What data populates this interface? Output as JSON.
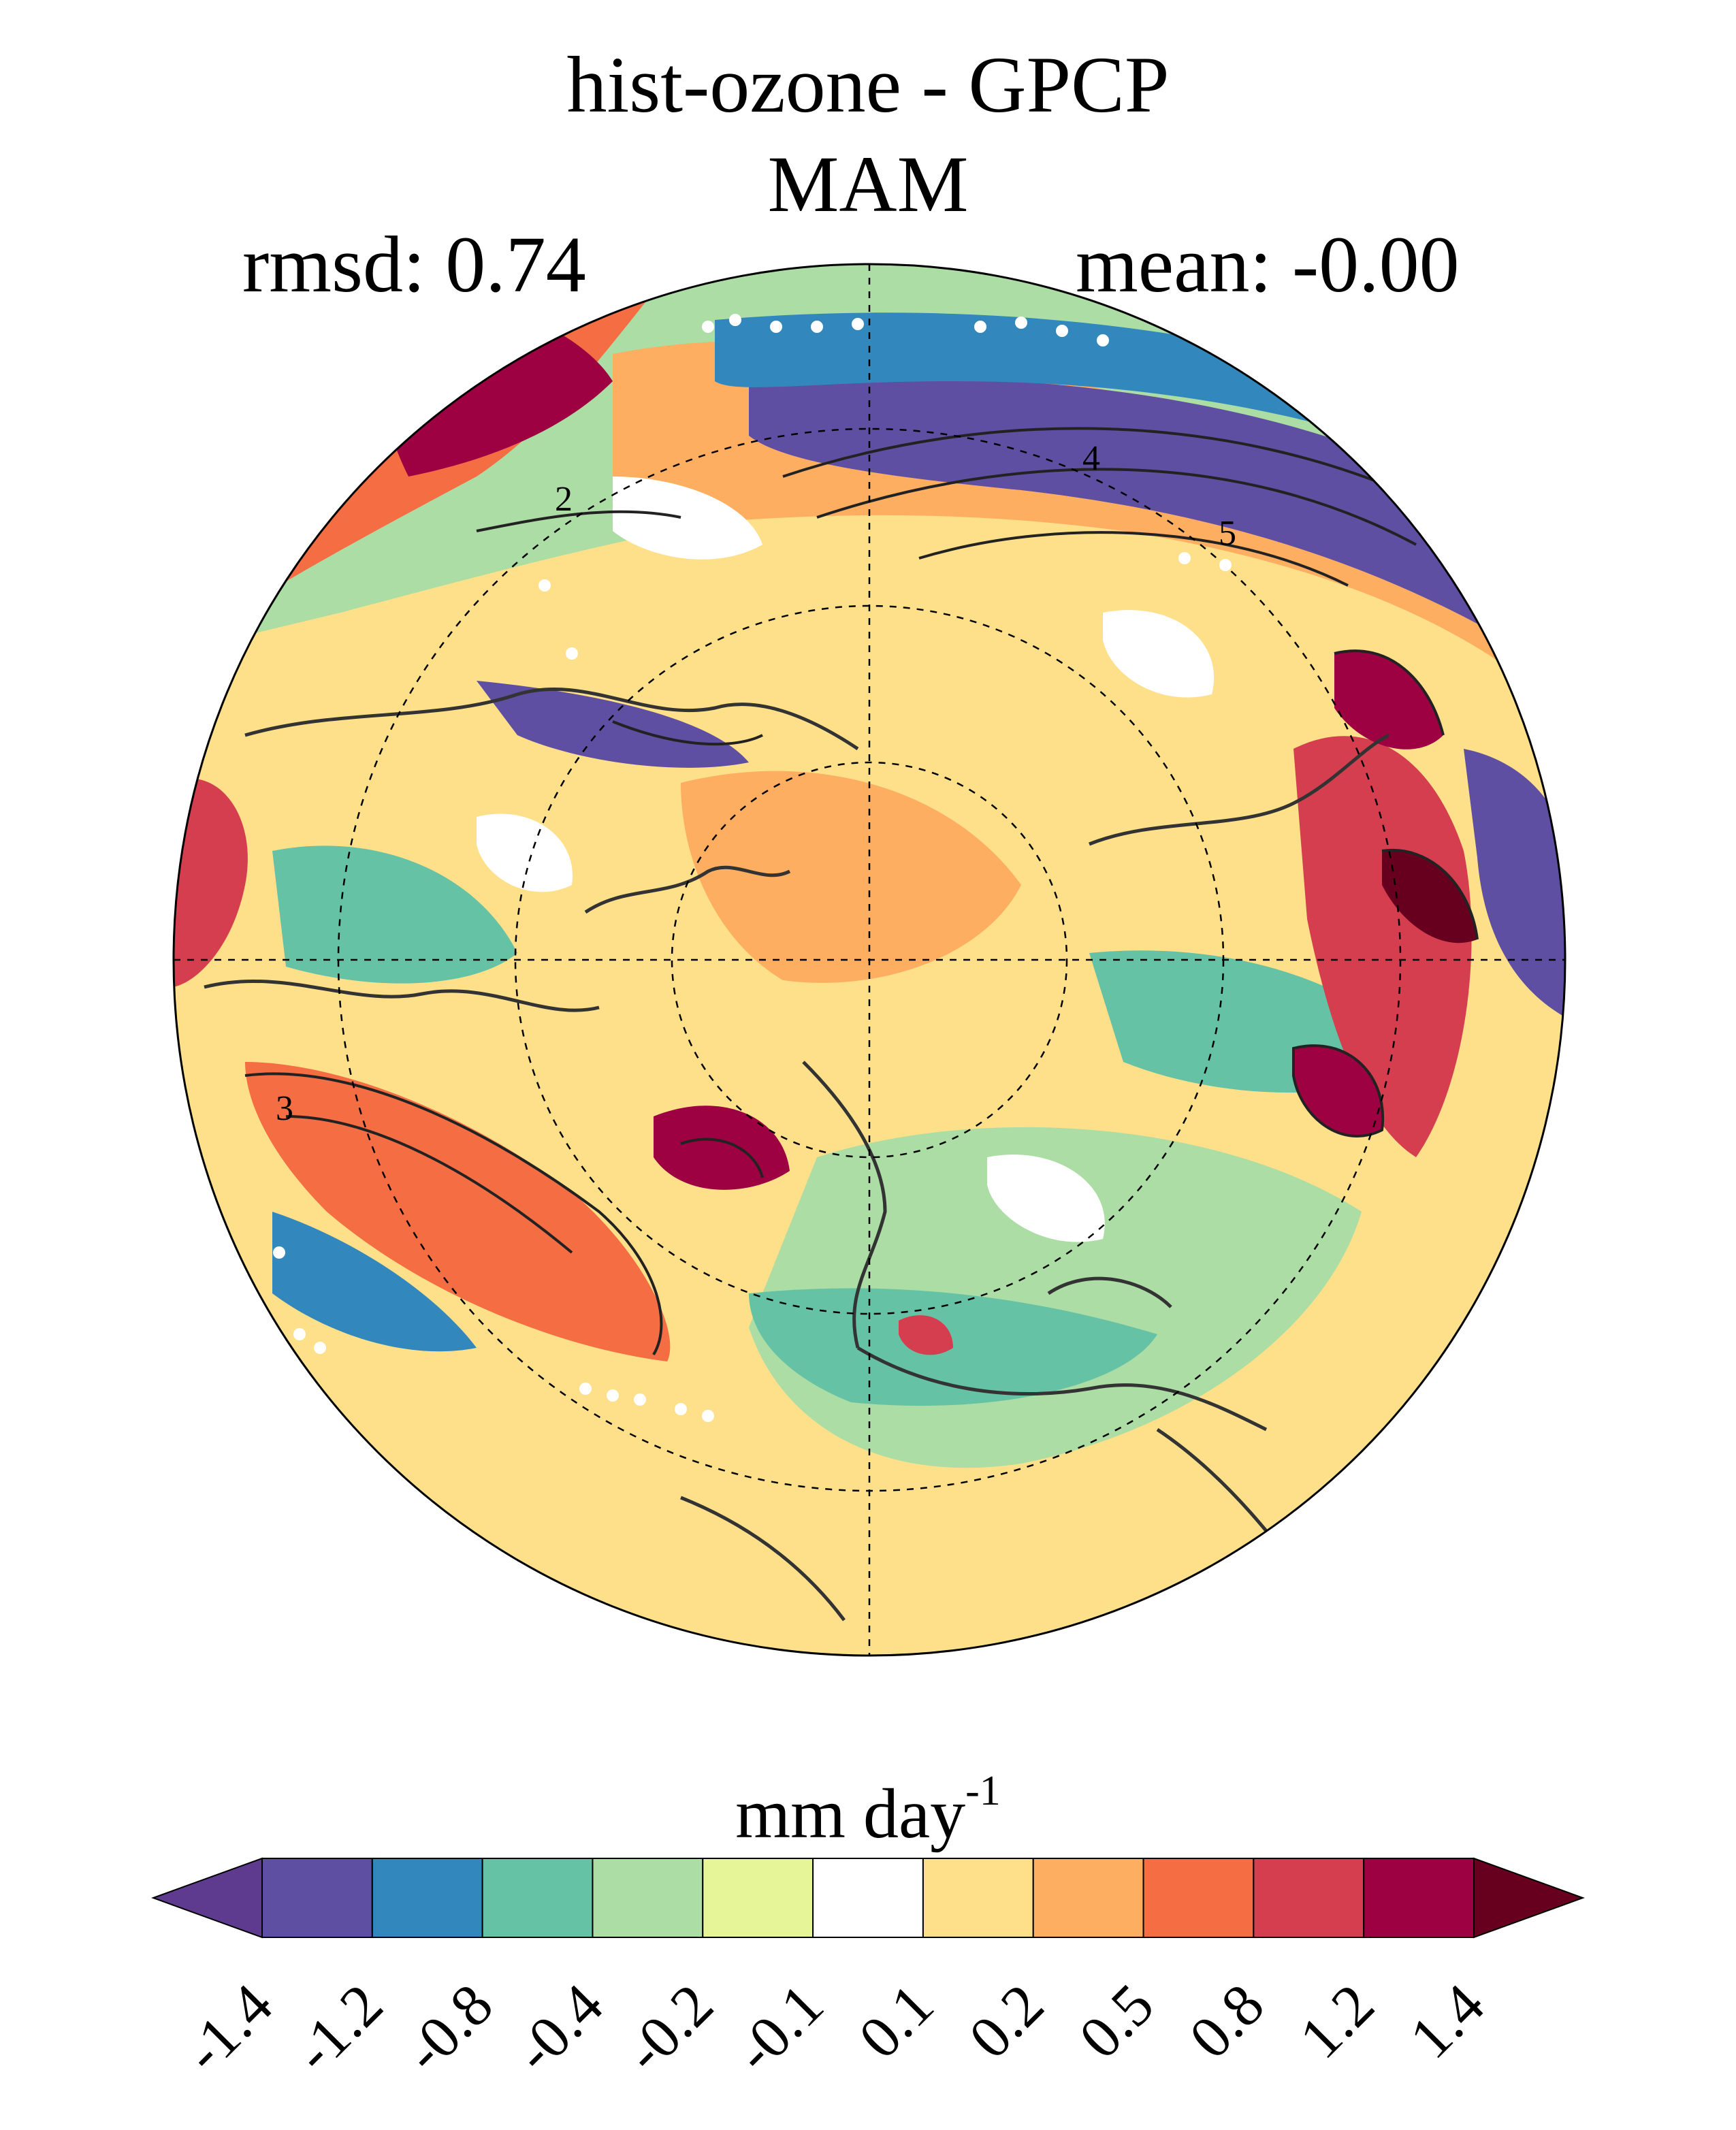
{
  "title": "hist-ozone - GPCP",
  "season": "MAM",
  "rmsd_label": "rmsd: 0.74",
  "mean_label": "mean: -0.00",
  "colorbar": {
    "units_base": "mm day",
    "units_exp": "-1",
    "ticks": [
      "-1.4",
      "-1.2",
      "-0.8",
      "-0.4",
      "-0.2",
      "-0.1",
      "0.1",
      "0.2",
      "0.5",
      "0.8",
      "1.2",
      "1.4"
    ],
    "colors": [
      "#5e3b8f",
      "#5e4fa2",
      "#3288bd",
      "#66c2a5",
      "#abdda4",
      "#e6f598",
      "#ffffff",
      "#fee08b",
      "#fdae61",
      "#f46d43",
      "#d53e4f",
      "#9e0142",
      "#67001f"
    ]
  },
  "contour_labels": [
    "2",
    "4",
    "5",
    "3"
  ]
}
